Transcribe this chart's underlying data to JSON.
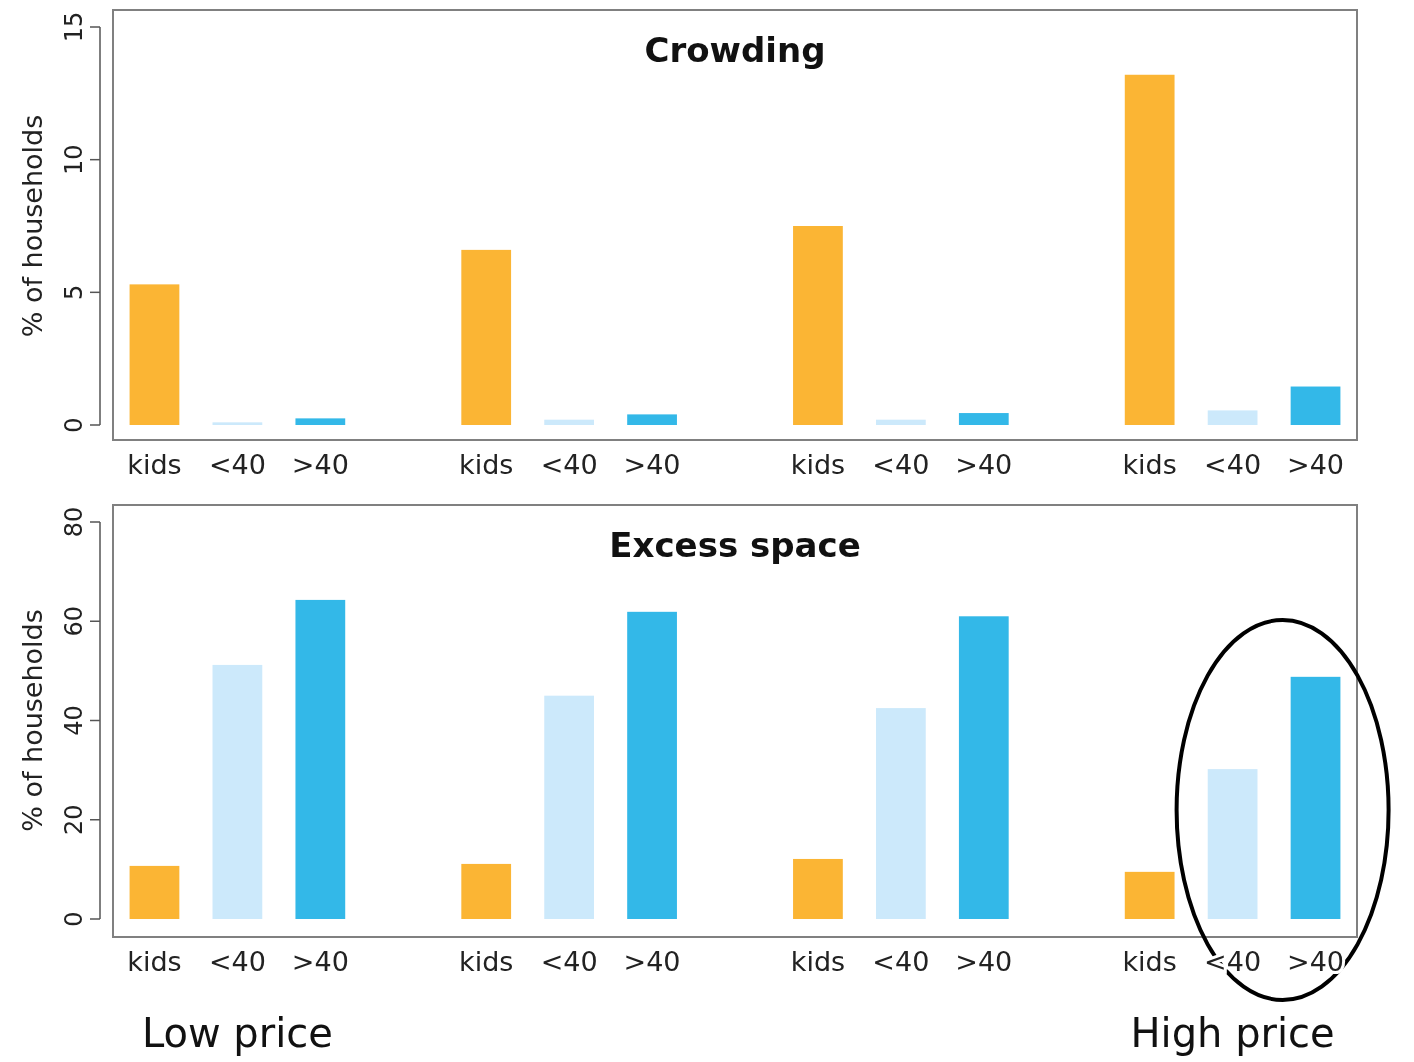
{
  "chart_data": [
    {
      "type": "bar",
      "title": "Crowding",
      "ylabel": "% of households",
      "categories": [
        "kids",
        "<40",
        ">40",
        null,
        "kids",
        "<40",
        ">40",
        null,
        "kids",
        "<40",
        ">40",
        null,
        "kids",
        "<40",
        ">40"
      ],
      "values": [
        5.3,
        0.1,
        0.25,
        null,
        6.6,
        0.2,
        0.4,
        null,
        7.5,
        0.2,
        0.45,
        null,
        13.2,
        0.55,
        1.45
      ],
      "colors": [
        "#fbb534",
        "#cce9fb",
        "#33b8e8",
        null,
        "#fbb534",
        "#cce9fb",
        "#33b8e8",
        null,
        "#fbb534",
        "#cce9fb",
        "#33b8e8",
        null,
        "#fbb534",
        "#cce9fb",
        "#33b8e8"
      ],
      "ylim": [
        0,
        15
      ],
      "yticks": [
        0,
        5,
        10,
        15
      ],
      "grid": false
    },
    {
      "type": "bar",
      "title": "Excess space",
      "ylabel": "% of households",
      "categories": [
        "kids",
        "<40",
        ">40",
        null,
        "kids",
        "<40",
        ">40",
        null,
        "kids",
        "<40",
        ">40",
        null,
        "kids",
        "<40",
        ">40"
      ],
      "values": [
        10.7,
        51.2,
        64.3,
        null,
        11.1,
        45,
        61.9,
        null,
        12.1,
        42.5,
        61,
        null,
        9.5,
        30.2,
        48.8
      ],
      "colors": [
        "#fbb534",
        "#cce9fb",
        "#33b8e8",
        null,
        "#fbb534",
        "#cce9fb",
        "#33b8e8",
        null,
        "#fbb534",
        "#cce9fb",
        "#33b8e8",
        null,
        "#fbb534",
        "#cce9fb",
        "#33b8e8"
      ],
      "ylim": [
        0,
        80
      ],
      "yticks": [
        0,
        20,
        40,
        60,
        80
      ],
      "grid": false,
      "annotations": [
        "Low price",
        "High price"
      ]
    }
  ]
}
